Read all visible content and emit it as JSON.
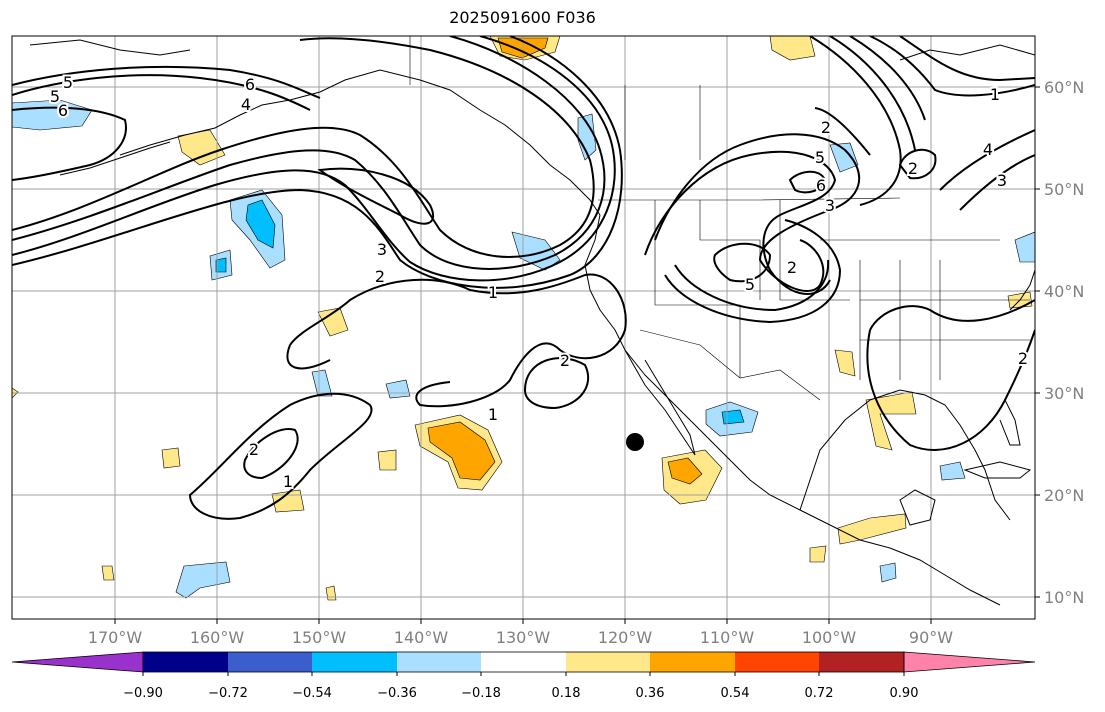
{
  "title": "2025091600 F036",
  "map": {
    "lon_ticks": [
      "170°W",
      "160°W",
      "150°W",
      "140°W",
      "130°W",
      "120°W",
      "110°W",
      "100°W",
      "90°W"
    ],
    "lat_ticks": [
      "60°N",
      "50°N",
      "40°N",
      "30°N",
      "20°N",
      "10°N"
    ],
    "grid_color": "#a0a0a0",
    "marker": "black-dot"
  },
  "contour_labels": [
    "5",
    "5",
    "6",
    "6",
    "4",
    "3",
    "2",
    "1",
    "2",
    "1",
    "2",
    "1",
    "2",
    "5",
    "6",
    "3",
    "5",
    "2",
    "2",
    "4",
    "3",
    "2",
    "1"
  ],
  "colorbar": {
    "ticks": [
      "−0.90",
      "−0.72",
      "−0.54",
      "−0.36",
      "−0.18",
      "0.18",
      "0.36",
      "0.54",
      "0.72",
      "0.90"
    ],
    "colors": [
      "#9932cc",
      "#00008b",
      "#3a5fcd",
      "#00bfff",
      "#aadfff",
      "#ffffff",
      "#ffe88a",
      "#ffa500",
      "#ff4500",
      "#b22222",
      "#ff82ab"
    ]
  },
  "fills": {
    "light_blue": "#aadfff",
    "blue": "#00bfff",
    "yellow": "#ffe88a",
    "orange": "#ffa500"
  }
}
